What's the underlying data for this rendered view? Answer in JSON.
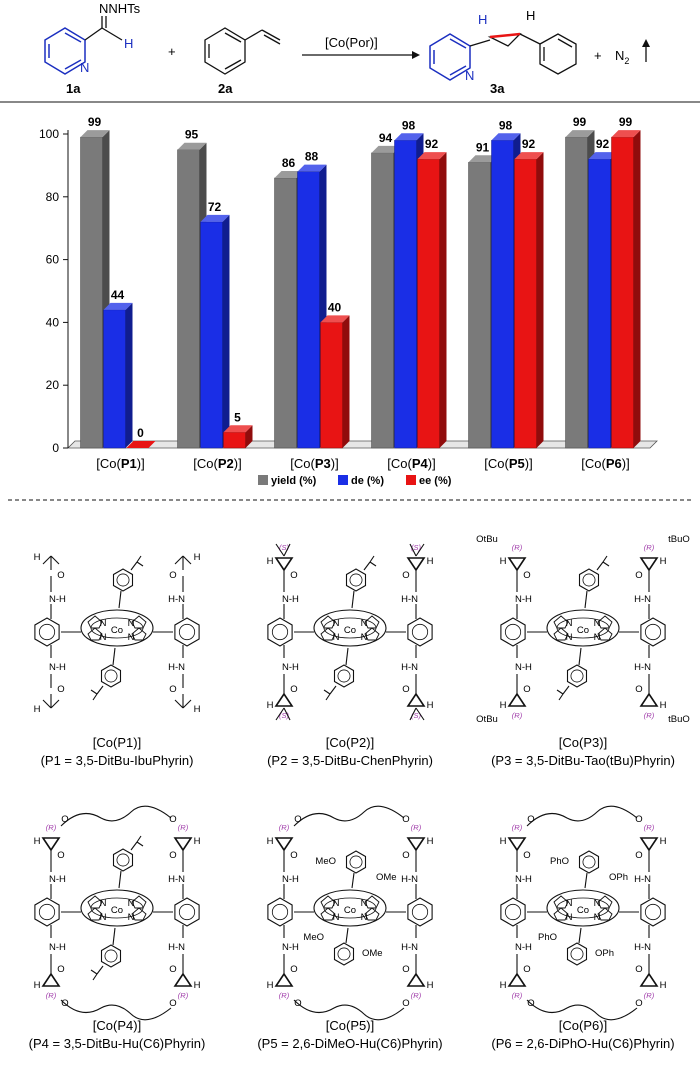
{
  "reaction": {
    "reagent1_group": "NNHTs",
    "reagent1_h": "H",
    "reagent1_n": "N",
    "reagent1_label": "1a",
    "plus1": "+",
    "reagent2_label": "2a",
    "catalyst": "[Co(Por)]",
    "product_label": "3a",
    "product_h1": "H",
    "product_h2": "H",
    "product_n": "N",
    "plus2": "+",
    "byproduct": "N",
    "byproduct_sub": "2"
  },
  "chart_data": {
    "type": "bar",
    "categories": [
      "[Co(P1)]",
      "[Co(P2)]",
      "[Co(P3)]",
      "[Co(P4)]",
      "[Co(P5)]",
      "[Co(P6)]"
    ],
    "series": [
      {
        "name": "yield (%)",
        "values": [
          99,
          95,
          86,
          94,
          91,
          99
        ],
        "color": "#7a7a7a"
      },
      {
        "name": "de (%)",
        "values": [
          44,
          72,
          88,
          98,
          98,
          92
        ],
        "color": "#1a2ee6"
      },
      {
        "name": "ee (%)",
        "values": [
          0,
          5,
          40,
          92,
          92,
          99
        ],
        "color": "#e81414"
      }
    ],
    "ylim": [
      0,
      100
    ],
    "yticks": [
      "0",
      "20",
      "40",
      "60",
      "80",
      "100"
    ],
    "legend_position": "bottom",
    "grid": false
  },
  "catalysts": [
    {
      "name": "[Co(P1)]",
      "caption": "(P1 = 3,5-DitBu-IbuPhyrin)"
    },
    {
      "name": "[Co(P2)]",
      "caption": "(P2 = 3,5-DitBu-ChenPhyrin)"
    },
    {
      "name": "[Co(P3)]",
      "caption": "(P3 = 3,5-DitBu-Tao(tBu)Phyrin)"
    },
    {
      "name": "[Co(P4)]",
      "caption": "(P4 = 3,5-DitBu-Hu(C6)Phyrin)"
    },
    {
      "name": "[Co(P5)]",
      "caption": "(P5 = 2,6-DiMeO-Hu(C6)Phyrin)"
    },
    {
      "name": "[Co(P6)]",
      "caption": "(P6 = 2,6-DiPhO-Hu(C6)Phyrin)"
    }
  ],
  "structure_labels": {
    "cobalt": "Co",
    "nitrogen": "N",
    "amide_nh_left": "N-H",
    "amide_nh_right": "H-N",
    "hydrogen": "H",
    "oxygen": "O",
    "chirality_s": "(S)",
    "chirality_r": "(R)",
    "ester_tbu": "OtBu",
    "ester_tbu_left": "tBuO",
    "methoxy": "OMe",
    "methoxy_left": "MeO",
    "phenoxy": "OPh",
    "phenoxy_left": "PhO"
  }
}
